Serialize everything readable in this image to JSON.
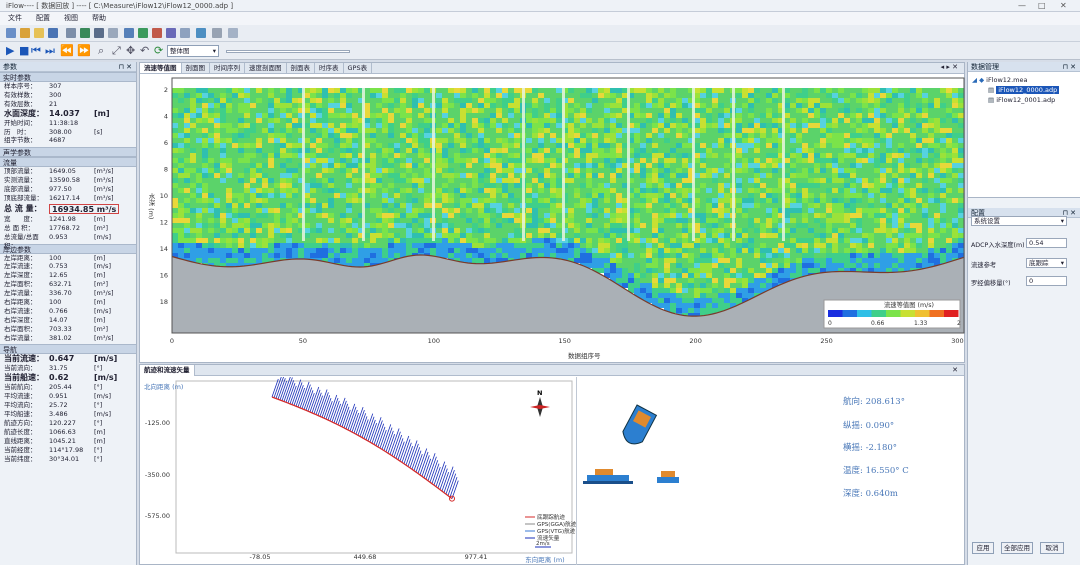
{
  "window": {
    "title": "iFlow---- [ 数据回放 ] ---- [ C:\\Measure\\iFlow12\\iFlow12_0000.adp ]",
    "controls": [
      "—",
      "□",
      "✕"
    ]
  },
  "menu": [
    "文件",
    "配置",
    "视图",
    "帮助"
  ],
  "toolbar": {
    "view_select": "整体图"
  },
  "left": {
    "panel_title": "参数",
    "realtime": {
      "title": "实时参数",
      "rows": [
        {
          "label": "样本序号：",
          "value": "307",
          "unit": ""
        },
        {
          "label": "有效样数：",
          "value": "300",
          "unit": ""
        },
        {
          "label": "有效层数：",
          "value": "21",
          "unit": ""
        },
        {
          "label": "水面深度：",
          "value": "14.037",
          "unit": "[m]",
          "big": true
        },
        {
          "label": "开始时间：",
          "value": "11:38:18",
          "unit": ""
        },
        {
          "label": "历　时：",
          "value": "308.00",
          "unit": "[s]"
        },
        {
          "label": "组字节数：",
          "value": "4687",
          "unit": ""
        }
      ]
    },
    "acoustic_title": "声学参数",
    "flow": {
      "title": "流量",
      "rows": [
        {
          "label": "顶部流量：",
          "value": "1649.05",
          "unit": "[m³/s]"
        },
        {
          "label": "实测流量：",
          "value": "13590.58",
          "unit": "[m³/s]"
        },
        {
          "label": "底部流量：",
          "value": "977.50",
          "unit": "[m³/s]"
        },
        {
          "label": "顶底部流量：",
          "value": "16217.14",
          "unit": "[m³/s]"
        }
      ],
      "total": {
        "label": "总 流 量：",
        "value": "16934.85 m³/s"
      },
      "rows2": [
        {
          "label": "宽　　度：",
          "value": "1241.98",
          "unit": "[m]"
        },
        {
          "label": "总 面 积：",
          "value": "17768.72",
          "unit": "[m²]"
        },
        {
          "label": "总流量/总面积：",
          "value": "0.953",
          "unit": "[m/s]"
        }
      ]
    },
    "bank": {
      "title": "岸边参数",
      "rows": [
        {
          "label": "左岸距离：",
          "value": "100",
          "unit": "[m]"
        },
        {
          "label": "左岸流速：",
          "value": "0.753",
          "unit": "[m/s]"
        },
        {
          "label": "左岸深度：",
          "value": "12.65",
          "unit": "[m]"
        },
        {
          "label": "左岸面积：",
          "value": "632.71",
          "unit": "[m²]"
        },
        {
          "label": "左岸流量：",
          "value": "336.70",
          "unit": "[m³/s]"
        },
        {
          "label": "右岸距离：",
          "value": "100",
          "unit": "[m]"
        },
        {
          "label": "右岸流速：",
          "value": "0.766",
          "unit": "[m/s]"
        },
        {
          "label": "右岸深度：",
          "value": "14.07",
          "unit": "[m]"
        },
        {
          "label": "右岸面积：",
          "value": "703.33",
          "unit": "[m²]"
        },
        {
          "label": "右岸流量：",
          "value": "381.02",
          "unit": "[m³/s]"
        }
      ]
    },
    "nav": {
      "title": "导航",
      "rows": [
        {
          "label": "当前流速：",
          "value": "0.647",
          "unit": "[m/s]",
          "big": true
        },
        {
          "label": "当前流向：",
          "value": "31.75",
          "unit": "[°]"
        },
        {
          "label": "当前船速：",
          "value": "0.62",
          "unit": "[m/s]",
          "big": true
        },
        {
          "label": "当前航向：",
          "value": "205.44",
          "unit": "[°]"
        },
        {
          "label": "平均流速：",
          "value": "0.951",
          "unit": "[m/s]"
        },
        {
          "label": "平均流向：",
          "value": "25.72",
          "unit": "[°]"
        },
        {
          "label": "平均船速：",
          "value": "3.486",
          "unit": "[m/s]"
        },
        {
          "label": "航迹方向：",
          "value": "120.227",
          "unit": "[°]"
        },
        {
          "label": "航迹长度：",
          "value": "1066.63",
          "unit": "[m]"
        },
        {
          "label": "直线距离：",
          "value": "1045.21",
          "unit": "[m]"
        },
        {
          "label": "当前经度：",
          "value": "114°17.98",
          "unit": "[°]"
        },
        {
          "label": "当前纬度：",
          "value": "30°34.01",
          "unit": "[°]"
        }
      ]
    }
  },
  "main": {
    "tabs": [
      "流速等值图",
      "剖面图",
      "时间序列",
      "速度剖面图",
      "剖面表",
      "时序表",
      "GPS表"
    ],
    "y_ticks": [
      "2",
      "4",
      "6",
      "8",
      "10",
      "12",
      "14",
      "16",
      "18"
    ],
    "y_label": "水深 (m)",
    "x_ticks": [
      "0",
      "50",
      "100",
      "150",
      "200",
      "250",
      "300"
    ],
    "x_label": "数据组序号",
    "legend_title": "流速等值图 (m/s)",
    "legend_ticks": [
      "0",
      "0.66",
      "1.33",
      "2"
    ]
  },
  "bottom": {
    "tab": "航迹和流速矢量",
    "y_label": "北向距离 (m)",
    "y_ticks": [
      "-125.00",
      "-350.00",
      "-575.00"
    ],
    "x_ticks": [
      "-78.05",
      "449.68",
      "977.41"
    ],
    "x_label": "东向距离 (m)",
    "legend": [
      "底跟踪航迹",
      "GPS(GGA)航迹",
      "GPS(VTG)航迹",
      "流速矢量"
    ],
    "scale_label": "2m/s",
    "north": "N",
    "readouts": [
      "航向: 208.613°",
      "纵摇: 0.090°",
      "横摇: -2.180°",
      "温度: 16.550° C",
      "深度: 0.640m"
    ]
  },
  "right": {
    "data_panel_title": "数据管理",
    "tree": [
      "iFlow12.mea",
      "iFlow12_0000.adp",
      "iFlow12_0001.adp"
    ],
    "config_title": "配置",
    "config_select": "系统设置",
    "fields": [
      {
        "label": "ADCP入水深度(m)",
        "value": "0.54"
      },
      {
        "label": "流速参考",
        "value": "底跟踪"
      },
      {
        "label": "罗经偏移量(°)",
        "value": "0"
      }
    ],
    "buttons": [
      "应用",
      "全部应用",
      "取消"
    ]
  },
  "colors": {
    "accent": "#1b56b8",
    "panel": "#eef2f7"
  }
}
